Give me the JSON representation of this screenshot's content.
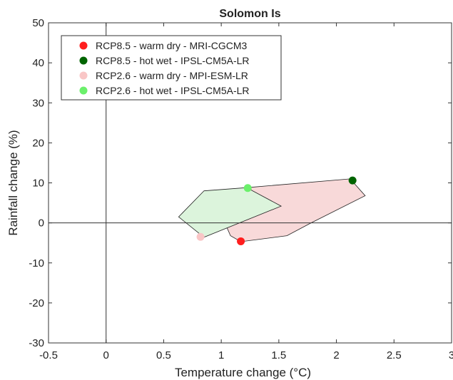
{
  "chart_data": {
    "type": "scatter",
    "title": "Solomon Is",
    "xlabel": "Temperature change (°C)",
    "ylabel": "Rainfall change (%)",
    "xlim": [
      -0.5,
      3
    ],
    "ylim": [
      -30,
      50
    ],
    "xticks": [
      -0.5,
      0,
      0.5,
      1,
      1.5,
      2,
      2.5,
      3
    ],
    "xtick_labels": [
      "-0.5",
      "0",
      "0.5",
      "1",
      "1.5",
      "2",
      "2.5",
      "3"
    ],
    "yticks": [
      -30,
      -20,
      -10,
      0,
      10,
      20,
      30,
      40,
      50
    ],
    "ytick_labels": [
      "-30",
      "-20",
      "-10",
      "0",
      "10",
      "20",
      "30",
      "40",
      "50"
    ],
    "grid": false,
    "legend_position": "top-left",
    "zero_lines": true,
    "regions": [
      {
        "color": "#f8d9d9",
        "points": [
          [
            1.22,
            8.8
          ],
          [
            2.12,
            11.0
          ],
          [
            2.25,
            6.8
          ],
          [
            1.78,
            0.0
          ],
          [
            1.57,
            -3.2
          ],
          [
            1.17,
            -4.7
          ],
          [
            1.08,
            -3.2
          ],
          [
            1.05,
            -1.2
          ],
          [
            1.12,
            2.0
          ],
          [
            1.22,
            4.2
          ]
        ]
      },
      {
        "color": "#dcf4dc",
        "points": [
          [
            0.85,
            8.0
          ],
          [
            1.22,
            8.8
          ],
          [
            1.52,
            4.2
          ],
          [
            0.85,
            -3.6
          ],
          [
            0.63,
            1.5
          ]
        ]
      }
    ],
    "series": [
      {
        "name": "RCP8.5 - warm dry - MRI-CGCM3",
        "color": "#ff1e1e",
        "x": [
          1.17
        ],
        "y": [
          -4.6
        ]
      },
      {
        "name": "RCP8.5 - hot wet - IPSL-CM5A-LR",
        "color": "#006400",
        "x": [
          2.14
        ],
        "y": [
          10.6
        ]
      },
      {
        "name": "RCP2.6 - warm dry - MPI-ESM-LR",
        "color": "#f9c6c6",
        "x": [
          0.82
        ],
        "y": [
          -3.5
        ]
      },
      {
        "name": "RCP2.6 - hot wet - IPSL-CM5A-LR",
        "color": "#6bf06b",
        "x": [
          1.23
        ],
        "y": [
          8.7
        ]
      }
    ]
  }
}
